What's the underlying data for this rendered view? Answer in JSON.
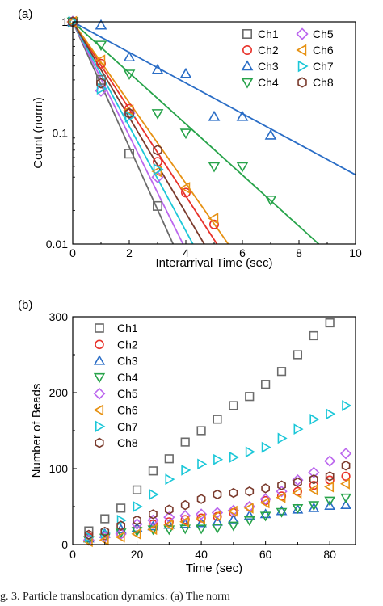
{
  "caption_fragment": "g. 3.  Particle translocation dynamics:  (a) The norm",
  "colors": {
    "Ch1": "#6b6b6b",
    "Ch2": "#e8322a",
    "Ch3": "#2a6dc6",
    "Ch4": "#27a34a",
    "Ch5": "#bb66ee",
    "Ch6": "#e69112",
    "Ch7": "#1bc7d8",
    "Ch8": "#7a3a2c"
  },
  "chart_data": [
    {
      "panel_label": "(a)",
      "type": "scatter",
      "xlabel": "Interarrival Time (sec)",
      "ylabel": "Count (norm)",
      "xlim": [
        0,
        10
      ],
      "ylim": [
        0.01,
        1
      ],
      "yscale": "log",
      "xticks": [
        0,
        2,
        4,
        6,
        8,
        10
      ],
      "yticks": [
        0.01,
        0.1,
        1
      ],
      "ytick_labels": [
        "0.01",
        "0.1",
        "1"
      ],
      "legend_placement": "top-right",
      "series": [
        {
          "name": "Ch1",
          "marker": "square",
          "x": [
            0,
            1,
            2,
            3
          ],
          "y": [
            1,
            0.3,
            0.065,
            0.022
          ],
          "fit_end": [
            3.55,
            0.01
          ]
        },
        {
          "name": "Ch2",
          "marker": "circle",
          "x": [
            0,
            1,
            2,
            3,
            4,
            5
          ],
          "y": [
            1,
            0.42,
            0.165,
            0.055,
            0.029,
            0.015
          ],
          "fit_end": [
            5.1,
            0.01
          ]
        },
        {
          "name": "Ch3",
          "marker": "triangle-up",
          "x": [
            0,
            1,
            2,
            3,
            4,
            5,
            6,
            7
          ],
          "y": [
            1,
            0.93,
            0.48,
            0.37,
            0.34,
            0.14,
            0.14,
            0.095
          ],
          "fit_end": [
            10,
            0.042
          ]
        },
        {
          "name": "Ch4",
          "marker": "triangle-down",
          "x": [
            0,
            1,
            2,
            3,
            4,
            5,
            6,
            7
          ],
          "y": [
            1,
            0.62,
            0.34,
            0.15,
            0.1,
            0.05,
            0.05,
            0.025
          ],
          "fit_end": [
            8.7,
            0.01
          ]
        },
        {
          "name": "Ch5",
          "marker": "diamond",
          "x": [
            0,
            1,
            2,
            3
          ],
          "y": [
            1,
            0.24,
            0.15,
            0.04
          ],
          "fit_end": [
            3.9,
            0.01
          ]
        },
        {
          "name": "Ch6",
          "marker": "triangle-left",
          "x": [
            0,
            1,
            2,
            3,
            4,
            5
          ],
          "y": [
            1,
            0.45,
            0.16,
            0.045,
            0.032,
            0.017
          ],
          "fit_end": [
            5.5,
            0.01
          ]
        },
        {
          "name": "Ch7",
          "marker": "triangle-right",
          "x": [
            0,
            1,
            2,
            3
          ],
          "y": [
            1,
            0.25,
            0.14,
            0.047
          ],
          "fit_end": [
            4.25,
            0.01
          ]
        },
        {
          "name": "Ch8",
          "marker": "hexagon",
          "x": [
            0,
            1,
            2,
            3
          ],
          "y": [
            1,
            0.28,
            0.15,
            0.07
          ],
          "fit_end": [
            4.65,
            0.01
          ]
        }
      ]
    },
    {
      "panel_label": "(b)",
      "type": "scatter",
      "xlabel": "Time (sec)",
      "ylabel": "Number of Beads",
      "xlim": [
        0,
        88
      ],
      "ylim": [
        0,
        300
      ],
      "xticks": [
        0,
        20,
        40,
        60,
        80
      ],
      "yticks": [
        0,
        100,
        200,
        300
      ],
      "legend_placement": "top-left",
      "x": [
        5,
        10,
        15,
        20,
        25,
        30,
        35,
        40,
        45,
        50,
        55,
        60,
        65,
        70,
        75,
        80,
        85
      ],
      "series": [
        {
          "name": "Ch1",
          "marker": "square",
          "values": [
            18,
            34,
            48,
            72,
            97,
            113,
            135,
            150,
            165,
            183,
            195,
            211,
            228,
            250,
            275,
            292,
            null
          ]
        },
        {
          "name": "Ch2",
          "marker": "circle",
          "values": [
            10,
            12,
            14,
            20,
            27,
            30,
            33,
            35,
            37,
            42,
            50,
            58,
            64,
            70,
            78,
            85,
            90
          ]
        },
        {
          "name": "Ch3",
          "marker": "triangle-up",
          "values": [
            8,
            14,
            20,
            22,
            24,
            26,
            27,
            28,
            30,
            33,
            38,
            40,
            44,
            46,
            48,
            51,
            52
          ]
        },
        {
          "name": "Ch4",
          "marker": "triangle-down",
          "values": [
            6,
            9,
            16,
            18,
            20,
            20,
            21,
            21,
            22,
            25,
            32,
            38,
            43,
            48,
            52,
            58,
            62
          ]
        },
        {
          "name": "Ch5",
          "marker": "diamond",
          "values": [
            6,
            10,
            14,
            27,
            32,
            36,
            38,
            40,
            42,
            45,
            50,
            60,
            70,
            85,
            95,
            110,
            120
          ]
        },
        {
          "name": "Ch6",
          "marker": "triangle-left",
          "values": [
            4,
            6,
            10,
            14,
            20,
            26,
            30,
            34,
            38,
            44,
            48,
            55,
            62,
            68,
            72,
            76,
            80
          ]
        },
        {
          "name": "Ch7",
          "marker": "triangle-right",
          "values": [
            10,
            15,
            32,
            50,
            66,
            86,
            98,
            106,
            112,
            115,
            122,
            128,
            140,
            152,
            165,
            172,
            183
          ]
        },
        {
          "name": "Ch8",
          "marker": "hexagon",
          "values": [
            13,
            17,
            25,
            32,
            40,
            46,
            52,
            60,
            66,
            68,
            70,
            74,
            78,
            82,
            86,
            90,
            104
          ]
        }
      ]
    }
  ]
}
